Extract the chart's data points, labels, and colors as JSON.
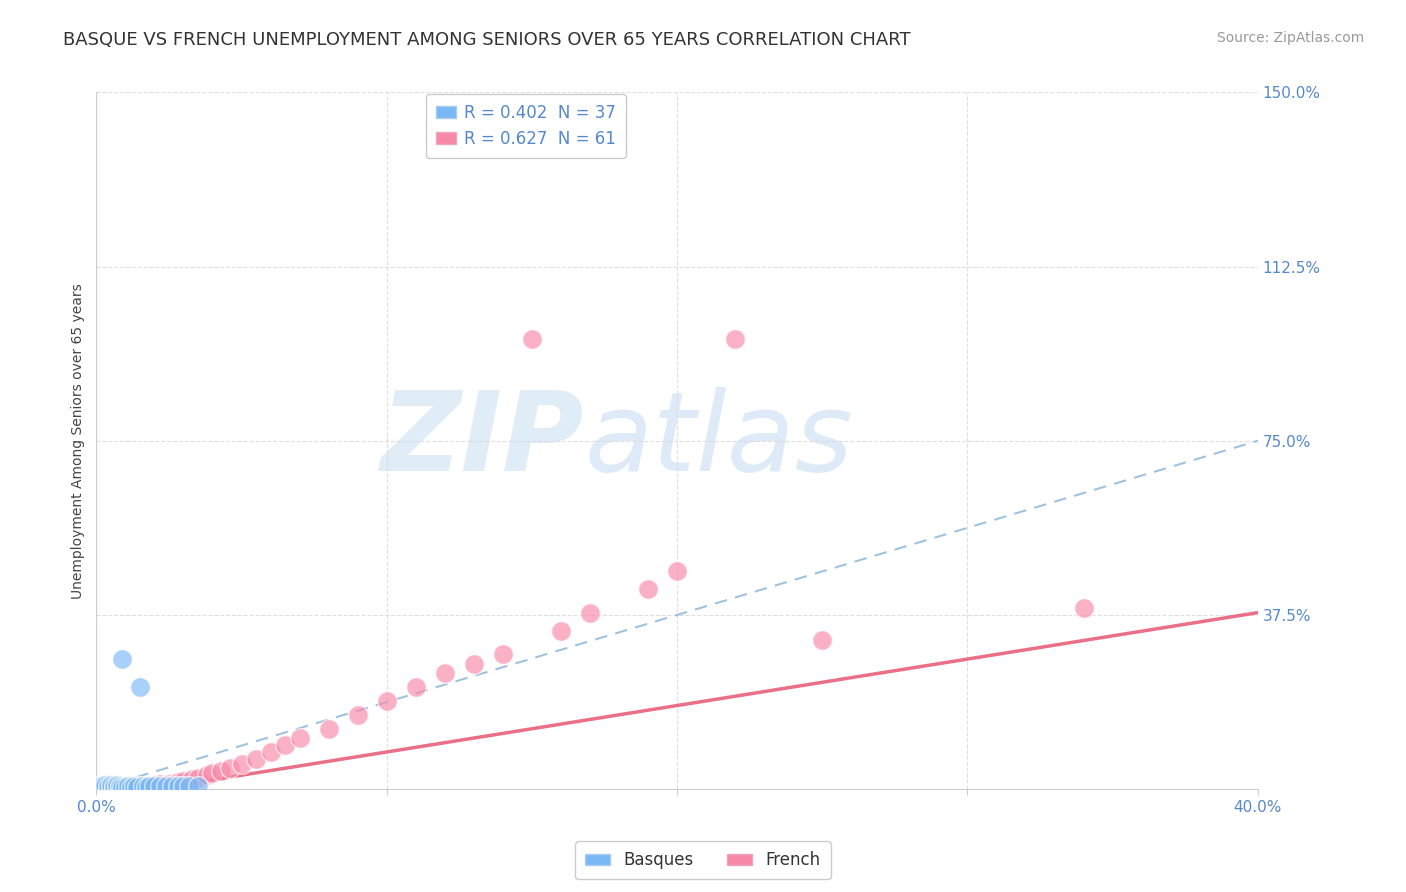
{
  "title": "BASQUE VS FRENCH UNEMPLOYMENT AMONG SENIORS OVER 65 YEARS CORRELATION CHART",
  "source": "Source: ZipAtlas.com",
  "ylabel": "Unemployment Among Seniors over 65 years",
  "xlim": [
    0,
    0.4
  ],
  "ylim": [
    0,
    1.5
  ],
  "xticks": [
    0.0,
    0.1,
    0.2,
    0.3,
    0.4
  ],
  "xticklabels": [
    "0.0%",
    "",
    "",
    "",
    "40.0%"
  ],
  "yticks": [
    0.0,
    0.375,
    0.75,
    1.125,
    1.5
  ],
  "yticklabels": [
    "",
    "37.5%",
    "75.0%",
    "112.5%",
    "150.0%"
  ],
  "legend_line1": "R = 0.402  N = 37",
  "legend_line2": "R = 0.627  N = 61",
  "basque_color": "#7ab8f5",
  "french_color": "#f888a8",
  "basque_line_color": "#90b8d8",
  "french_line_color": "#e8607a",
  "watermark_zip": "ZIP",
  "watermark_atlas": "atlas",
  "watermark_color_zip": "#c8dff0",
  "watermark_color_atlas": "#a8c8e8",
  "grid_color": "#d8d8d8",
  "title_fontsize": 13,
  "axis_label_fontsize": 10,
  "tick_fontsize": 11,
  "legend_fontsize": 12,
  "tick_color": "#5588cc",
  "source_color": "#999999",
  "basque_trend_slope": 1.875,
  "basque_trend_intercept": 0.0,
  "french_trend_slope": 1.0,
  "french_trend_intercept": -0.02,
  "basque_pts_x": [
    0.001,
    0.001,
    0.001,
    0.002,
    0.002,
    0.003,
    0.003,
    0.003,
    0.004,
    0.004,
    0.005,
    0.005,
    0.006,
    0.006,
    0.007,
    0.007,
    0.008,
    0.008,
    0.009,
    0.009,
    0.01,
    0.011,
    0.012,
    0.013,
    0.014,
    0.015,
    0.016,
    0.017,
    0.018,
    0.02,
    0.022,
    0.024,
    0.026,
    0.028,
    0.03,
    0.032,
    0.035
  ],
  "basque_pts_y": [
    0.002,
    0.004,
    0.006,
    0.003,
    0.007,
    0.002,
    0.005,
    0.008,
    0.003,
    0.006,
    0.004,
    0.008,
    0.003,
    0.007,
    0.004,
    0.008,
    0.003,
    0.006,
    0.004,
    0.28,
    0.005,
    0.006,
    0.004,
    0.007,
    0.005,
    0.22,
    0.006,
    0.005,
    0.007,
    0.006,
    0.007,
    0.006,
    0.007,
    0.006,
    0.007,
    0.006,
    0.007
  ],
  "french_pts_x": [
    0.001,
    0.001,
    0.001,
    0.002,
    0.002,
    0.003,
    0.003,
    0.003,
    0.004,
    0.004,
    0.005,
    0.005,
    0.005,
    0.006,
    0.006,
    0.007,
    0.007,
    0.008,
    0.008,
    0.009,
    0.01,
    0.01,
    0.011,
    0.012,
    0.013,
    0.014,
    0.015,
    0.016,
    0.017,
    0.018,
    0.02,
    0.022,
    0.025,
    0.028,
    0.03,
    0.033,
    0.035,
    0.038,
    0.04,
    0.043,
    0.046,
    0.05,
    0.055,
    0.06,
    0.065,
    0.07,
    0.08,
    0.09,
    0.1,
    0.11,
    0.12,
    0.13,
    0.14,
    0.15,
    0.16,
    0.17,
    0.19,
    0.2,
    0.22,
    0.25,
    0.34
  ],
  "french_pts_y": [
    0.002,
    0.004,
    0.007,
    0.003,
    0.006,
    0.002,
    0.005,
    0.008,
    0.003,
    0.006,
    0.002,
    0.005,
    0.009,
    0.003,
    0.007,
    0.003,
    0.006,
    0.003,
    0.007,
    0.004,
    0.003,
    0.007,
    0.004,
    0.006,
    0.004,
    0.007,
    0.004,
    0.007,
    0.005,
    0.007,
    0.008,
    0.01,
    0.012,
    0.015,
    0.018,
    0.022,
    0.025,
    0.03,
    0.035,
    0.04,
    0.045,
    0.055,
    0.065,
    0.08,
    0.095,
    0.11,
    0.13,
    0.16,
    0.19,
    0.22,
    0.25,
    0.27,
    0.29,
    0.97,
    0.34,
    0.38,
    0.43,
    0.47,
    0.97,
    0.32,
    0.39
  ]
}
